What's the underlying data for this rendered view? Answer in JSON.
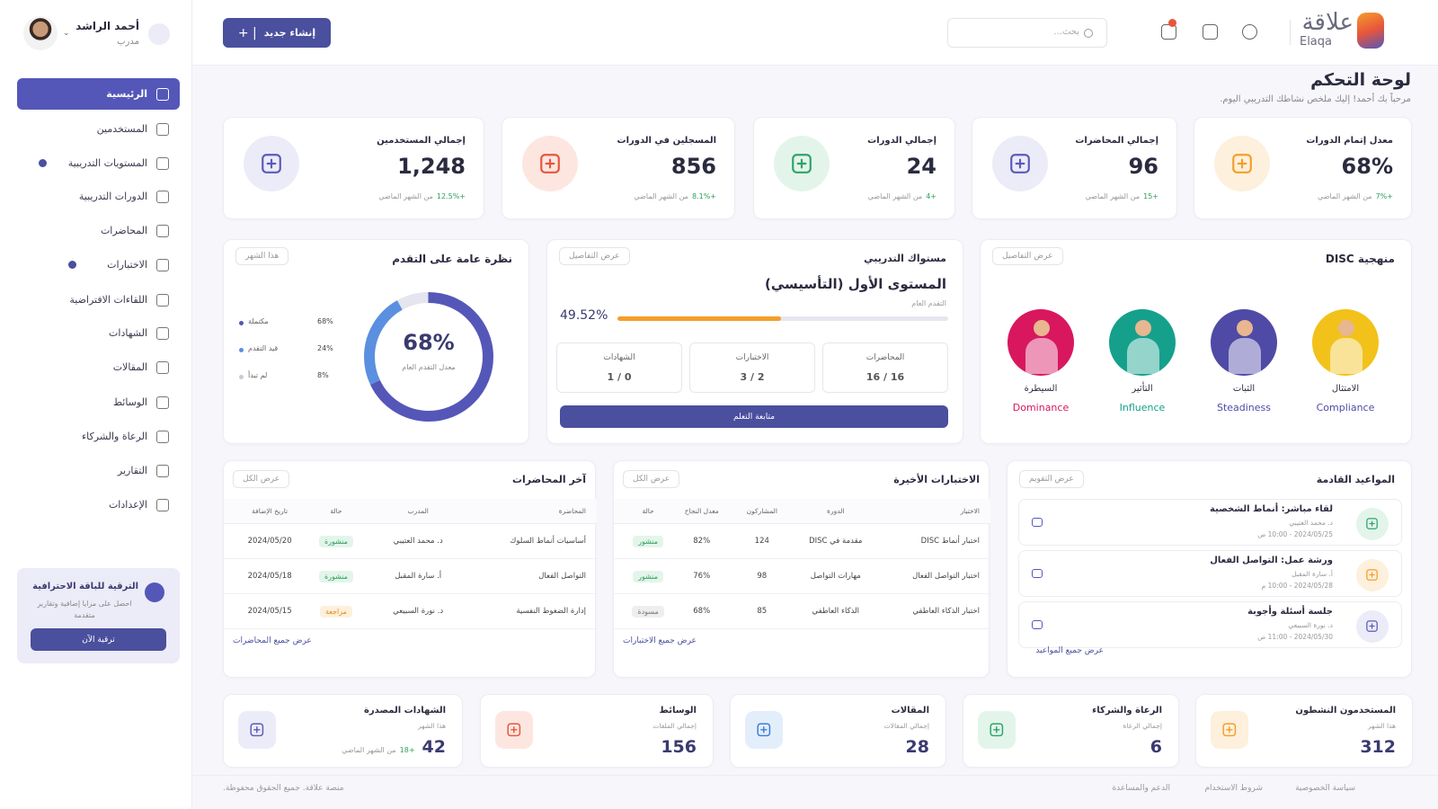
{
  "sidebar": {
    "user": {
      "name": "أحمد الراشد",
      "role": "مدرب"
    },
    "menu": [
      {
        "label": "الرئيسية",
        "active": true
      },
      {
        "label": "المستخدمين"
      },
      {
        "label": "المستويات التدريبية",
        "badge": true
      },
      {
        "label": "الدورات التدريبية"
      },
      {
        "label": "المحاضرات"
      },
      {
        "label": "الاختبارات",
        "badge": true
      },
      {
        "label": "اللقاءات الافتراضية"
      },
      {
        "label": "الشهادات"
      },
      {
        "label": "المقالات"
      },
      {
        "label": "الوسائط"
      },
      {
        "label": "الرعاة والشركاء"
      },
      {
        "label": "التقارير"
      },
      {
        "label": "الإعدادات"
      }
    ],
    "upgrade": {
      "title": "الترقية للباقة الاحترافية",
      "text": "احصل على مزايا إضافية وتقارير متقدمة",
      "button": "ترقية الآن"
    }
  },
  "header": {
    "create_button": "إنشاء جديد",
    "search_placeholder": "بحث...",
    "brand": "علاقة",
    "brand_latin": "Elaqa"
  },
  "page": {
    "title": "لوحة التحكم",
    "subtitle": "مرحباً بك أحمد! إليك ملخص نشاطك التدريبي اليوم."
  },
  "stats": [
    {
      "label": "معدل إتمام الدورات",
      "value": "68%",
      "change": "+7%",
      "note": "من الشهر الماضي",
      "color": "#f59e2a",
      "bg": "#fdf0dc"
    },
    {
      "label": "إجمالي المحاضرات",
      "value": "96",
      "change": "+15",
      "note": "من الشهر الماضي",
      "color": "#5b5bb8",
      "bg": "#ecebf8"
    },
    {
      "label": "إجمالي الدورات",
      "value": "24",
      "change": "+4",
      "note": "من الشهر الماضي",
      "color": "#2fa36b",
      "bg": "#e3f5ea"
    },
    {
      "label": "المسجلين في الدورات",
      "value": "856",
      "change": "+8.1%",
      "note": "من الشهر الماضي",
      "color": "#e8563b",
      "bg": "#fde6e0"
    },
    {
      "label": "إجمالي المستخدمين",
      "value": "1,248",
      "change": "+12.5%",
      "note": "من الشهر الماضي",
      "color": "#5b5bb8",
      "bg": "#ecebf8"
    }
  ],
  "disc": {
    "title": "منهجية DISC",
    "button": "عرض التفاصيل",
    "types": [
      {
        "ar": "الامتثال",
        "en": "Compliance",
        "color": "#f2c21b"
      },
      {
        "ar": "الثبات",
        "en": "Steadiness",
        "color": "#4f4aa6"
      },
      {
        "ar": "التأثير",
        "en": "Influence",
        "color": "#15a08c"
      },
      {
        "ar": "السيطرة",
        "en": "Dominance",
        "color": "#d8175f"
      }
    ]
  },
  "level": {
    "title": "مستواك التدريبي",
    "button": "عرض التفاصيل",
    "level": "المستوى الأول (التأسيسي)",
    "progress_label": "التقدم العام",
    "progress": 49.52,
    "progress_text": "49.52%",
    "items": [
      {
        "label": "المحاضرات",
        "value": "16 / 16"
      },
      {
        "label": "الاختبارات",
        "value": "2 / 3"
      },
      {
        "label": "الشهادات",
        "value": "0 / 1"
      }
    ],
    "action": "متابعة التعلم"
  },
  "progress": {
    "type": "donut",
    "title": "نظرة عامة على التقدم",
    "filter": "هذا الشهر",
    "center_label": "68%",
    "center_caption": "معدل التقدم العام",
    "segments": [
      {
        "name": "مكتملة",
        "value": 68,
        "label": "68%",
        "color": "#5457b8"
      },
      {
        "name": "قيد التقدم",
        "value": 24,
        "label": "24%",
        "color": "#5b8fe0"
      },
      {
        "name": "لم تبدأ",
        "value": 8,
        "label": "8%",
        "color": "#e4e5ee"
      }
    ]
  },
  "appointments": {
    "title": "المواعيد القادمة",
    "button": "عرض التقويم",
    "footer": "عرض جميع المواعيد",
    "items": [
      {
        "title": "لقاء مباشر: أنماط الشخصية",
        "person": "د. محمد العتيبي",
        "time": "2024/05/25 - 10:00 ص",
        "color": "#2fa36b",
        "bg": "#e3f5ea"
      },
      {
        "title": "ورشة عمل: التواصل الفعال",
        "person": "أ. سارة المقبل",
        "time": "2024/05/28 - 10:00 م",
        "color": "#f59e2a",
        "bg": "#fdf0dc"
      },
      {
        "title": "جلسة أسئلة وأجوبة",
        "person": "د. نورة السبيعي",
        "time": "2024/05/30 - 11:00 ص",
        "color": "#5b5bb8",
        "bg": "#ecebf8"
      }
    ]
  },
  "tests": {
    "title": "الاختبارات الأخيرة",
    "button": "عرض الكل",
    "footer": "عرض جميع الاختبارات",
    "columns": [
      "الاختبار",
      "الدورة",
      "المشاركون",
      "معدل النجاح",
      "حالة"
    ],
    "rows": [
      {
        "cells": [
          "اختبار أنماط DISC",
          "مقدمة في DISC",
          "124",
          "82%",
          "منشور"
        ],
        "status_color": "#2e9e5b",
        "status_bg": "#e3f5ea"
      },
      {
        "cells": [
          "اختبار التواصل الفعال",
          "مهارات التواصل",
          "98",
          "76%",
          "منشور"
        ],
        "status_color": "#2e9e5b",
        "status_bg": "#e3f5ea"
      },
      {
        "cells": [
          "اختبار الذكاء العاطفي",
          "الذكاء العاطفي",
          "85",
          "68%",
          "مسودة"
        ],
        "status_color": "#777",
        "status_bg": "#eeeeee"
      }
    ]
  },
  "lectures": {
    "title": "آخر المحاضرات",
    "button": "عرض الكل",
    "footer": "عرض جميع المحاضرات",
    "columns": [
      "المحاضرة",
      "المدرب",
      "حالة",
      "تاريخ الإضافة"
    ],
    "rows": [
      {
        "cells": [
          "أساسيات أنماط السلوك",
          "د. محمد العتيبي",
          "منشورة",
          "2024/05/20"
        ],
        "status_color": "#2e9e5b",
        "status_bg": "#e3f5ea"
      },
      {
        "cells": [
          "التواصل الفعال",
          "أ. سارة المقبل",
          "منشورة",
          "2024/05/18"
        ],
        "status_color": "#2e9e5b",
        "status_bg": "#e3f5ea"
      },
      {
        "cells": [
          "إدارة الضغوط النفسية",
          "د. نورة السبيعي",
          "مراجعة",
          "2024/05/15"
        ],
        "status_color": "#e58a1c",
        "status_bg": "#fdf0dc"
      }
    ]
  },
  "summary": [
    {
      "title": "المستخدمون النشطون",
      "sub": "هذا الشهر",
      "value": "312",
      "color": "#f59e2a",
      "bg": "#fdf0dc"
    },
    {
      "title": "الرعاة والشركاء",
      "sub": "إجمالي الرعاة",
      "value": "6",
      "color": "#2fa36b",
      "bg": "#e3f5ea"
    },
    {
      "title": "المقالات",
      "sub": "إجمالي المقالات",
      "value": "28",
      "color": "#3b7dd8",
      "bg": "#e3eefb"
    },
    {
      "title": "الوسائط",
      "sub": "إجمالي الملفات",
      "value": "156",
      "color": "#e8563b",
      "bg": "#fde6e0"
    },
    {
      "title": "الشهادات المصدرة",
      "sub": "هذا الشهر",
      "value": "42",
      "change": "+18",
      "note": "من الشهر الماضي",
      "color": "#5b5bb8",
      "bg": "#ecebf8"
    }
  ],
  "footer": {
    "copyright": "منصة علاقة. جميع الحقوق محفوظة.",
    "links": [
      "سياسة الخصوصية",
      "شروط الاستخدام",
      "الدعم والمساعدة"
    ]
  }
}
